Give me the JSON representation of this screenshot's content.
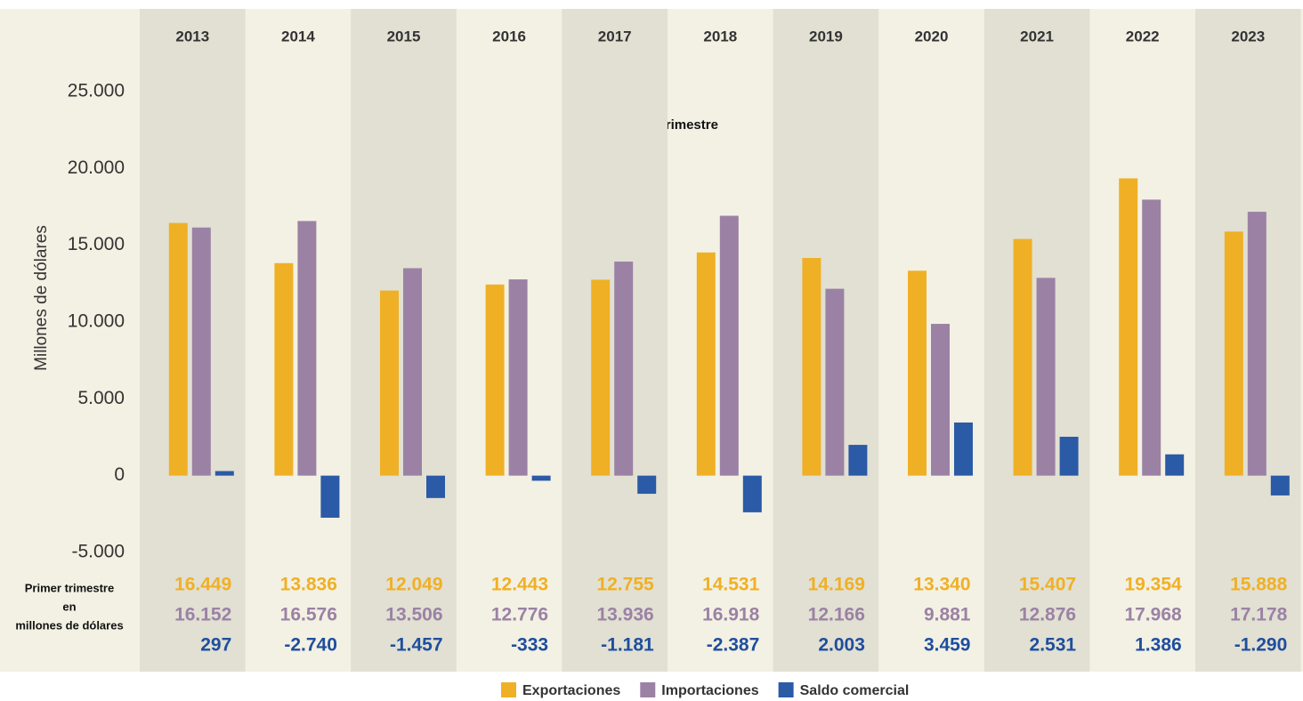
{
  "chart_data": {
    "type": "bar",
    "subtitle": "Primer trimestre",
    "y_label": "Millones de dólares",
    "row_label": [
      "Primer trimestre",
      "en",
      "millones de dólares"
    ],
    "categories": [
      "2013",
      "2014",
      "2015",
      "2016",
      "2017",
      "2018",
      "2019",
      "2020",
      "2021",
      "2022",
      "2023"
    ],
    "series": [
      {
        "name": "Exportaciones",
        "color": "#f0b025",
        "values": [
          16449,
          13836,
          12049,
          12443,
          12755,
          14531,
          14169,
          13340,
          15407,
          19354,
          15888
        ],
        "value_labels": [
          "16.449",
          "13.836",
          "12.049",
          "12.443",
          "12.755",
          "14.531",
          "14.169",
          "13.340",
          "15.407",
          "19.354",
          "15.888"
        ]
      },
      {
        "name": "Importaciones",
        "color": "#9b82a4",
        "values": [
          16152,
          16576,
          13506,
          12776,
          13936,
          16918,
          12166,
          9881,
          12876,
          17968,
          17178
        ],
        "value_labels": [
          "16.152",
          "16.576",
          "13.506",
          "12.776",
          "13.936",
          "16.918",
          "12.166",
          "9.881",
          "12.876",
          "17.968",
          "17.178"
        ]
      },
      {
        "name": "Saldo comercial",
        "color": "#2b5aa6",
        "values": [
          297,
          -2740,
          -1457,
          -333,
          -1181,
          -2387,
          2003,
          3459,
          2531,
          1386,
          -1290
        ],
        "value_labels": [
          "297",
          "-2.740",
          "-1.457",
          "-333",
          "-1.181",
          "-2.387",
          "2.003",
          "3.459",
          "2.531",
          "1.386",
          "-1.290"
        ]
      }
    ],
    "ylim": [
      -5000,
      25000
    ],
    "yticks": [
      {
        "value": -5000,
        "label": "-5.000"
      },
      0,
      {
        "value": 5000,
        "label": "5.000"
      },
      {
        "value": 10000,
        "label": "10.000"
      },
      {
        "value": 15000,
        "label": "15.000"
      },
      {
        "value": 20000,
        "label": "20.000"
      },
      {
        "value": 25000,
        "label": "25.000"
      }
    ]
  }
}
